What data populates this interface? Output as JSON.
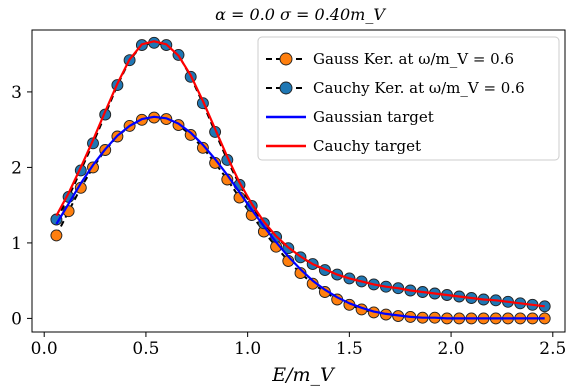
{
  "chart_data": {
    "type": "line",
    "title": "α = 0.0    σ = 0.40m_V",
    "xlabel": "E/m_V",
    "ylabel": "",
    "xlim": [
      -0.06,
      2.56
    ],
    "ylim": [
      -0.18,
      3.82
    ],
    "xticks": [
      0.0,
      0.5,
      1.0,
      1.5,
      2.0,
      2.5
    ],
    "xtick_labels": [
      "0.0",
      "0.5",
      "1.0",
      "1.5",
      "2.0",
      "2.5"
    ],
    "yticks": [
      0,
      1,
      2,
      3
    ],
    "ytick_labels": [
      "0",
      "1",
      "2",
      "3"
    ],
    "grid": false,
    "legend_position": "top-right",
    "series": [
      {
        "name": "Gauss Ker. at ω/m_V = 0.6",
        "style": "dashed-line-with-markers",
        "color": "#000000",
        "marker_color": "#ff7f0e",
        "x": [
          0.06,
          0.12,
          0.18,
          0.24,
          0.3,
          0.36,
          0.42,
          0.48,
          0.54,
          0.6,
          0.66,
          0.72,
          0.78,
          0.84,
          0.9,
          0.96,
          1.02,
          1.08,
          1.14,
          1.2,
          1.26,
          1.32,
          1.38,
          1.44,
          1.5,
          1.56,
          1.62,
          1.68,
          1.74,
          1.8,
          1.86,
          1.92,
          1.98,
          2.04,
          2.1,
          2.16,
          2.22,
          2.28,
          2.34,
          2.4,
          2.46
        ],
        "y": [
          1.1,
          1.42,
          1.73,
          2.0,
          2.23,
          2.41,
          2.55,
          2.63,
          2.66,
          2.64,
          2.56,
          2.43,
          2.26,
          2.06,
          1.84,
          1.6,
          1.37,
          1.15,
          0.95,
          0.76,
          0.6,
          0.46,
          0.35,
          0.25,
          0.18,
          0.12,
          0.08,
          0.05,
          0.03,
          0.02,
          0.01,
          0.01,
          0.0,
          0.0,
          0.0,
          0.0,
          0.0,
          0.0,
          0.0,
          0.0,
          0.0
        ]
      },
      {
        "name": "Cauchy Ker. at ω/m_V = 0.6",
        "style": "dashed-line-with-markers",
        "color": "#000000",
        "marker_color": "#1f77b4",
        "x": [
          0.06,
          0.12,
          0.18,
          0.24,
          0.3,
          0.36,
          0.42,
          0.48,
          0.54,
          0.6,
          0.66,
          0.72,
          0.78,
          0.84,
          0.9,
          0.96,
          1.02,
          1.08,
          1.14,
          1.2,
          1.26,
          1.32,
          1.38,
          1.44,
          1.5,
          1.56,
          1.62,
          1.68,
          1.74,
          1.8,
          1.86,
          1.92,
          1.98,
          2.04,
          2.1,
          2.16,
          2.22,
          2.28,
          2.34,
          2.4,
          2.46
        ],
        "y": [
          1.31,
          1.61,
          1.96,
          2.32,
          2.7,
          3.09,
          3.42,
          3.62,
          3.65,
          3.62,
          3.49,
          3.2,
          2.85,
          2.47,
          2.1,
          1.77,
          1.49,
          1.26,
          1.08,
          0.93,
          0.81,
          0.72,
          0.64,
          0.58,
          0.53,
          0.49,
          0.45,
          0.42,
          0.4,
          0.37,
          0.35,
          0.33,
          0.31,
          0.29,
          0.27,
          0.25,
          0.24,
          0.22,
          0.2,
          0.18,
          0.16
        ]
      },
      {
        "name": "Gaussian target",
        "style": "solid-line",
        "color": "#0000ff",
        "x": [
          0.06,
          0.12,
          0.18,
          0.24,
          0.3,
          0.36,
          0.42,
          0.48,
          0.54,
          0.6,
          0.66,
          0.72,
          0.78,
          0.84,
          0.9,
          0.96,
          1.02,
          1.08,
          1.14,
          1.2,
          1.26,
          1.32,
          1.38,
          1.44,
          1.5,
          1.56,
          1.62,
          1.68,
          1.74,
          1.8,
          1.86,
          1.92,
          1.98,
          2.04,
          2.1,
          2.16,
          2.22,
          2.28,
          2.34,
          2.4,
          2.46
        ],
        "y": [
          1.25,
          1.52,
          1.79,
          2.03,
          2.24,
          2.42,
          2.55,
          2.64,
          2.67,
          2.65,
          2.58,
          2.46,
          2.3,
          2.11,
          1.9,
          1.67,
          1.44,
          1.22,
          1.01,
          0.82,
          0.65,
          0.5,
          0.38,
          0.28,
          0.2,
          0.14,
          0.09,
          0.06,
          0.04,
          0.02,
          0.01,
          0.01,
          0.0,
          0.0,
          0.0,
          0.0,
          0.0,
          0.0,
          0.0,
          0.0,
          0.0
        ]
      },
      {
        "name": "Cauchy target",
        "style": "solid-line",
        "color": "#ff0000",
        "x": [
          0.06,
          0.12,
          0.18,
          0.24,
          0.3,
          0.36,
          0.42,
          0.48,
          0.54,
          0.6,
          0.66,
          0.72,
          0.78,
          0.84,
          0.9,
          0.96,
          1.02,
          1.08,
          1.14,
          1.2,
          1.26,
          1.32,
          1.38,
          1.44,
          1.5,
          1.56,
          1.62,
          1.68,
          1.74,
          1.8,
          1.86,
          1.92,
          1.98,
          2.04,
          2.1,
          2.16,
          2.22,
          2.28,
          2.34,
          2.4,
          2.46
        ],
        "y": [
          1.36,
          1.66,
          2.0,
          2.36,
          2.74,
          3.11,
          3.43,
          3.63,
          3.67,
          3.63,
          3.48,
          3.22,
          2.88,
          2.51,
          2.14,
          1.8,
          1.52,
          1.28,
          1.09,
          0.94,
          0.82,
          0.72,
          0.65,
          0.58,
          0.53,
          0.49,
          0.45,
          0.42,
          0.4,
          0.37,
          0.35,
          0.33,
          0.31,
          0.29,
          0.27,
          0.25,
          0.24,
          0.22,
          0.2,
          0.18,
          0.16
        ]
      }
    ]
  }
}
